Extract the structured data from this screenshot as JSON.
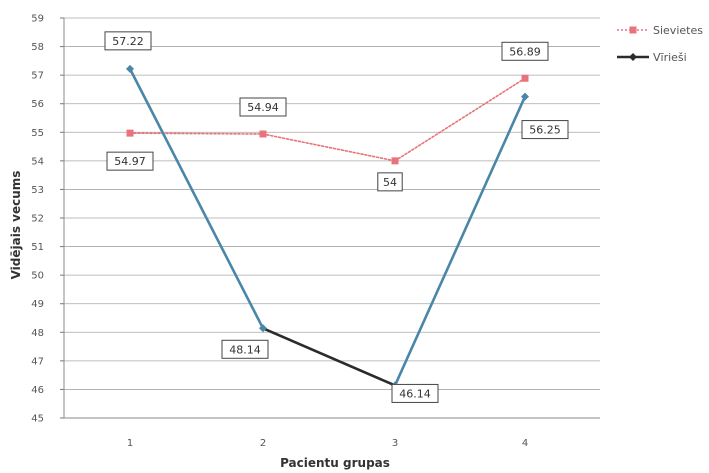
{
  "chart_data": {
    "type": "line",
    "title": "",
    "xlabel": "Pacientu grupas",
    "ylabel": "Vidējais vecums",
    "categories": [
      "1",
      "2",
      "3",
      "4"
    ],
    "ylim": [
      45,
      59
    ],
    "yticks": [
      "45",
      "46",
      "47",
      "48",
      "49",
      "50",
      "51",
      "52",
      "53",
      "54",
      "55",
      "56",
      "57",
      "58",
      "59"
    ],
    "grid": true,
    "legend_position": "top-right",
    "series": [
      {
        "name": "Sievietes",
        "values": [
          54.97,
          54.94,
          54,
          56.89
        ],
        "labels": [
          "54.97",
          "54.94",
          "54",
          "56.89"
        ],
        "color": "#e8737a",
        "marker": "square",
        "line_style": "dashed"
      },
      {
        "name": "Vīrieši",
        "values": [
          57.22,
          48.14,
          46.14,
          56.25
        ],
        "labels": [
          "57.22",
          "48.14",
          "46.14",
          "56.25"
        ],
        "color": "#2b2b2b",
        "rising_color": "#4a86a8",
        "marker": "diamond",
        "line_style": "solid"
      }
    ]
  }
}
